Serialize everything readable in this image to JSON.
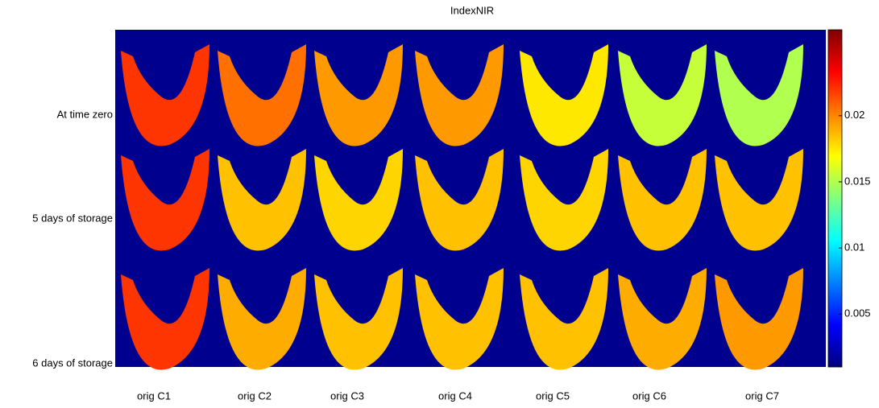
{
  "chart_data": {
    "type": "heatmap-image",
    "title": "IndexNIR",
    "rows": [
      "At time zero",
      "5 days of storage",
      "6 days of storage"
    ],
    "categories": [
      "orig C1",
      "orig C2",
      "orig C3",
      "orig C4",
      "orig C5",
      "orig C6",
      "orig C7"
    ],
    "values": [
      [
        0.022,
        0.0205,
        0.0195,
        0.0195,
        0.0175,
        0.0155,
        0.015
      ],
      [
        0.022,
        0.0185,
        0.018,
        0.0185,
        0.018,
        0.0185,
        0.0185
      ],
      [
        0.022,
        0.019,
        0.0185,
        0.0185,
        0.0185,
        0.019,
        0.0195
      ]
    ],
    "background_color": "#00008f",
    "colormap": "jet",
    "clim": [
      0.001,
      0.0265
    ],
    "cticks": [
      0.005,
      0.01,
      0.015,
      0.02
    ]
  }
}
